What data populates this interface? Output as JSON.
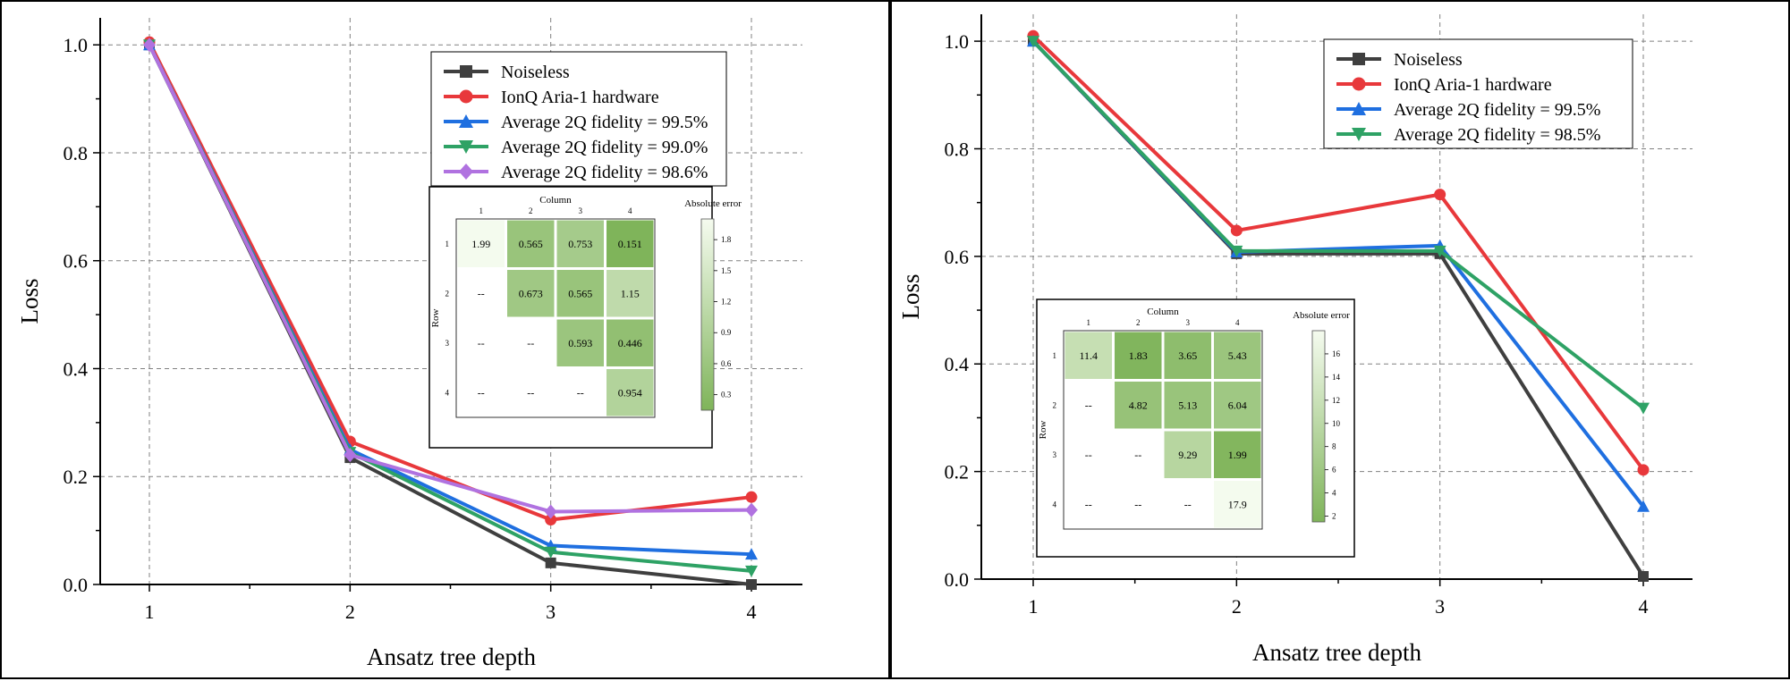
{
  "colors": {
    "noiseless": "#3f3f3f",
    "hardware": "#e8383b",
    "blue": "#1f6fe0",
    "green": "#2ea265",
    "purple": "#b072e0",
    "heat_low": "#f5fbef",
    "heat_high": "#7fb45a"
  },
  "chart_data": [
    {
      "type": "line",
      "xlabel": "Ansatz tree depth",
      "ylabel": "Loss",
      "x": [
        1,
        2,
        3,
        4
      ],
      "xticks": [
        "1",
        "2",
        "3",
        "4"
      ],
      "yticks": [
        "0.0",
        "0.2",
        "0.4",
        "0.6",
        "0.8",
        "1.0"
      ],
      "ylim": [
        0,
        1.05
      ],
      "grid": true,
      "legend_position": "top-right",
      "series": [
        {
          "name": "Noiseless",
          "color": "#3f3f3f",
          "marker": "square",
          "values": [
            1.0,
            0.235,
            0.04,
            0.0
          ]
        },
        {
          "name": "IonQ Aria-1 hardware",
          "color": "#e8383b",
          "marker": "circle",
          "values": [
            1.005,
            0.265,
            0.12,
            0.162
          ]
        },
        {
          "name": "Average 2Q fidelity = 99.5%",
          "color": "#1f6fe0",
          "marker": "triangle-up",
          "values": [
            1.0,
            0.25,
            0.072,
            0.056
          ]
        },
        {
          "name": "Average 2Q fidelity = 99.0%",
          "color": "#2ea265",
          "marker": "triangle-down",
          "values": [
            1.0,
            0.245,
            0.06,
            0.025
          ]
        },
        {
          "name": "Average 2Q fidelity = 98.6%",
          "color": "#b072e0",
          "marker": "diamond",
          "values": [
            1.0,
            0.24,
            0.135,
            0.138
          ]
        }
      ],
      "inset": {
        "type": "heatmap",
        "xlabel": "Column",
        "ylabel": "Row",
        "colorbar_label": "Absolute error",
        "col_labels": [
          "1",
          "2",
          "3",
          "4"
        ],
        "row_labels": [
          "1",
          "2",
          "3",
          "4"
        ],
        "cells": [
          [
            "1.99",
            "0.565",
            "0.753",
            "0.151"
          ],
          [
            "--",
            "0.673",
            "0.565",
            "1.15"
          ],
          [
            "--",
            "--",
            "0.593",
            "0.446"
          ],
          [
            "--",
            "--",
            "--",
            "0.954"
          ]
        ],
        "values": [
          [
            1.99,
            0.565,
            0.753,
            0.151
          ],
          [
            null,
            0.673,
            0.565,
            1.15
          ],
          [
            null,
            null,
            0.593,
            0.446
          ],
          [
            null,
            null,
            null,
            0.954
          ]
        ],
        "vrange": [
          0.15,
          2.0
        ],
        "colorbar_ticks": [
          "0.3",
          "0.6",
          "0.9",
          "1.2",
          "1.5",
          "1.8"
        ],
        "colorbar_tick_values": [
          0.3,
          0.6,
          0.9,
          1.2,
          1.5,
          1.8
        ]
      }
    },
    {
      "type": "line",
      "xlabel": "Ansatz tree depth",
      "ylabel": "Loss",
      "x": [
        1,
        2,
        3,
        4
      ],
      "xticks": [
        "1",
        "2",
        "3",
        "4"
      ],
      "yticks": [
        "0.0",
        "0.2",
        "0.4",
        "0.6",
        "0.8",
        "1.0"
      ],
      "ylim": [
        0,
        1.05
      ],
      "grid": true,
      "legend_position": "top-right",
      "series": [
        {
          "name": "Noiseless",
          "color": "#3f3f3f",
          "marker": "square",
          "values": [
            1.0,
            0.605,
            0.605,
            0.005
          ]
        },
        {
          "name": "IonQ Aria-1 hardware",
          "color": "#e8383b",
          "marker": "circle",
          "values": [
            1.01,
            0.648,
            0.715,
            0.203
          ]
        },
        {
          "name": "Average 2Q fidelity = 99.5%",
          "color": "#1f6fe0",
          "marker": "triangle-up",
          "values": [
            1.0,
            0.608,
            0.62,
            0.135
          ]
        },
        {
          "name": "Average 2Q fidelity = 98.5%",
          "color": "#2ea265",
          "marker": "triangle-down",
          "values": [
            1.0,
            0.61,
            0.61,
            0.318
          ]
        }
      ],
      "inset": {
        "type": "heatmap",
        "xlabel": "Column",
        "ylabel": "Row",
        "colorbar_label": "Absolute error",
        "col_labels": [
          "1",
          "2",
          "3",
          "4"
        ],
        "row_labels": [
          "1",
          "2",
          "3",
          "4"
        ],
        "cells": [
          [
            "11.4",
            "1.83",
            "3.65",
            "5.43"
          ],
          [
            "--",
            "4.82",
            "5.13",
            "6.04"
          ],
          [
            "--",
            "--",
            "9.29",
            "1.99"
          ],
          [
            "--",
            "--",
            "--",
            "17.9"
          ]
        ],
        "values": [
          [
            11.4,
            1.83,
            3.65,
            5.43
          ],
          [
            null,
            4.82,
            5.13,
            6.04
          ],
          [
            null,
            null,
            9.29,
            1.99
          ],
          [
            null,
            null,
            null,
            17.9
          ]
        ],
        "vrange": [
          1.5,
          18.0
        ],
        "colorbar_ticks": [
          "2",
          "4",
          "6",
          "8",
          "10",
          "12",
          "14",
          "16"
        ],
        "colorbar_tick_values": [
          2,
          4,
          6,
          8,
          10,
          12,
          14,
          16
        ]
      }
    }
  ]
}
